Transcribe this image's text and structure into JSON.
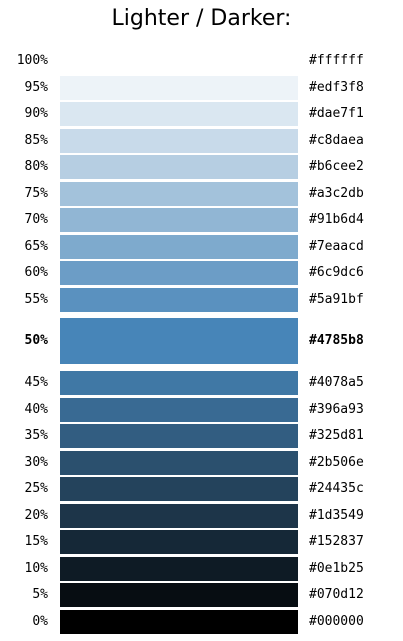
{
  "title": "Lighter / Darker:",
  "rows": [
    {
      "percent": "100%",
      "hex": "#ffffff"
    },
    {
      "percent": "95%",
      "hex": "#edf3f8"
    },
    {
      "percent": "90%",
      "hex": "#dae7f1"
    },
    {
      "percent": "85%",
      "hex": "#c8daea"
    },
    {
      "percent": "80%",
      "hex": "#b6cee2"
    },
    {
      "percent": "75%",
      "hex": "#a3c2db"
    },
    {
      "percent": "70%",
      "hex": "#91b6d4"
    },
    {
      "percent": "65%",
      "hex": "#7eaacd"
    },
    {
      "percent": "60%",
      "hex": "#6c9dc6"
    },
    {
      "percent": "55%",
      "hex": "#5a91bf"
    },
    {
      "percent": "50%",
      "hex": "#4785b8",
      "selected": true
    },
    {
      "percent": "45%",
      "hex": "#4078a5"
    },
    {
      "percent": "40%",
      "hex": "#396a93"
    },
    {
      "percent": "35%",
      "hex": "#325d81"
    },
    {
      "percent": "30%",
      "hex": "#2b506e"
    },
    {
      "percent": "25%",
      "hex": "#24435c"
    },
    {
      "percent": "20%",
      "hex": "#1d3549"
    },
    {
      "percent": "15%",
      "hex": "#152837"
    },
    {
      "percent": "10%",
      "hex": "#0e1b25"
    },
    {
      "percent": "5%",
      "hex": "#070d12"
    },
    {
      "percent": "0%",
      "hex": "#000000"
    }
  ]
}
